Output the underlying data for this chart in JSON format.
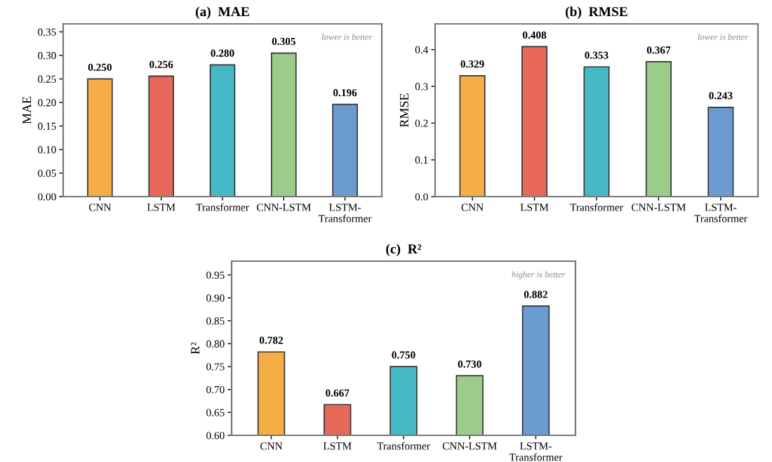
{
  "chart_data": [
    {
      "type": "bar",
      "title": "(a)  MAE",
      "ylabel": "MAE",
      "categories": [
        "CNN",
        "LSTM",
        "Transformer",
        "CNN-LSTM",
        "LSTM-\nTransformer"
      ],
      "values": [
        0.25,
        0.256,
        0.28,
        0.305,
        0.196
      ],
      "value_labels": [
        "0.250",
        "0.256",
        "0.280",
        "0.305",
        "0.196"
      ],
      "colors": [
        "#f5ae45",
        "#e8685a",
        "#45b9c6",
        "#9ccc8c",
        "#6b9bd1"
      ],
      "ylim": [
        0,
        0.367
      ],
      "yticks": [
        {
          "value": 0,
          "label": "0.00"
        },
        {
          "value": 0.05,
          "label": "0.05"
        },
        {
          "value": 0.1,
          "label": "0.10"
        },
        {
          "value": 0.15,
          "label": "0.15"
        },
        {
          "value": 0.2,
          "label": "0.20"
        },
        {
          "value": 0.25,
          "label": "0.25"
        },
        {
          "value": 0.3,
          "label": "0.30"
        },
        {
          "value": 0.35,
          "label": "0.35"
        }
      ],
      "annotations": [
        "lower is better"
      ]
    },
    {
      "type": "bar",
      "title": "(b)  RMSE",
      "ylabel": "RMSE",
      "categories": [
        "CNN",
        "LSTM",
        "Transformer",
        "CNN-LSTM",
        "LSTM-\nTransformer"
      ],
      "values": [
        0.329,
        0.408,
        0.353,
        0.367,
        0.243
      ],
      "value_labels": [
        "0.329",
        "0.408",
        "0.353",
        "0.367",
        "0.243"
      ],
      "colors": [
        "#f5ae45",
        "#e8685a",
        "#45b9c6",
        "#9ccc8c",
        "#6b9bd1"
      ],
      "ylim": [
        0,
        0.47
      ],
      "yticks": [
        {
          "value": 0,
          "label": "0.0"
        },
        0.1,
        0.2,
        0.3,
        0.4
      ],
      "annotations": [
        "lower is better"
      ]
    },
    {
      "type": "bar",
      "title": "(c)  R²",
      "ylabel": "R²",
      "categories": [
        "CNN",
        "LSTM",
        "Transformer",
        "CNN-LSTM",
        "LSTM-\nTransformer"
      ],
      "values": [
        0.782,
        0.667,
        0.75,
        0.73,
        0.882
      ],
      "value_labels": [
        "0.782",
        "0.667",
        "0.750",
        "0.730",
        "0.882"
      ],
      "colors": [
        "#f5ae45",
        "#e8685a",
        "#45b9c6",
        "#9ccc8c",
        "#6b9bd1"
      ],
      "ylim": [
        0.6,
        0.98
      ],
      "yticks": [
        {
          "value": 0.6,
          "label": "0.60"
        },
        0.65,
        {
          "value": 0.7,
          "label": "0.70"
        },
        0.75,
        {
          "value": 0.8,
          "label": "0.80"
        },
        0.85,
        {
          "value": 0.9,
          "label": "0.90"
        },
        0.95
      ],
      "annotations": [
        "higher is better"
      ]
    }
  ]
}
